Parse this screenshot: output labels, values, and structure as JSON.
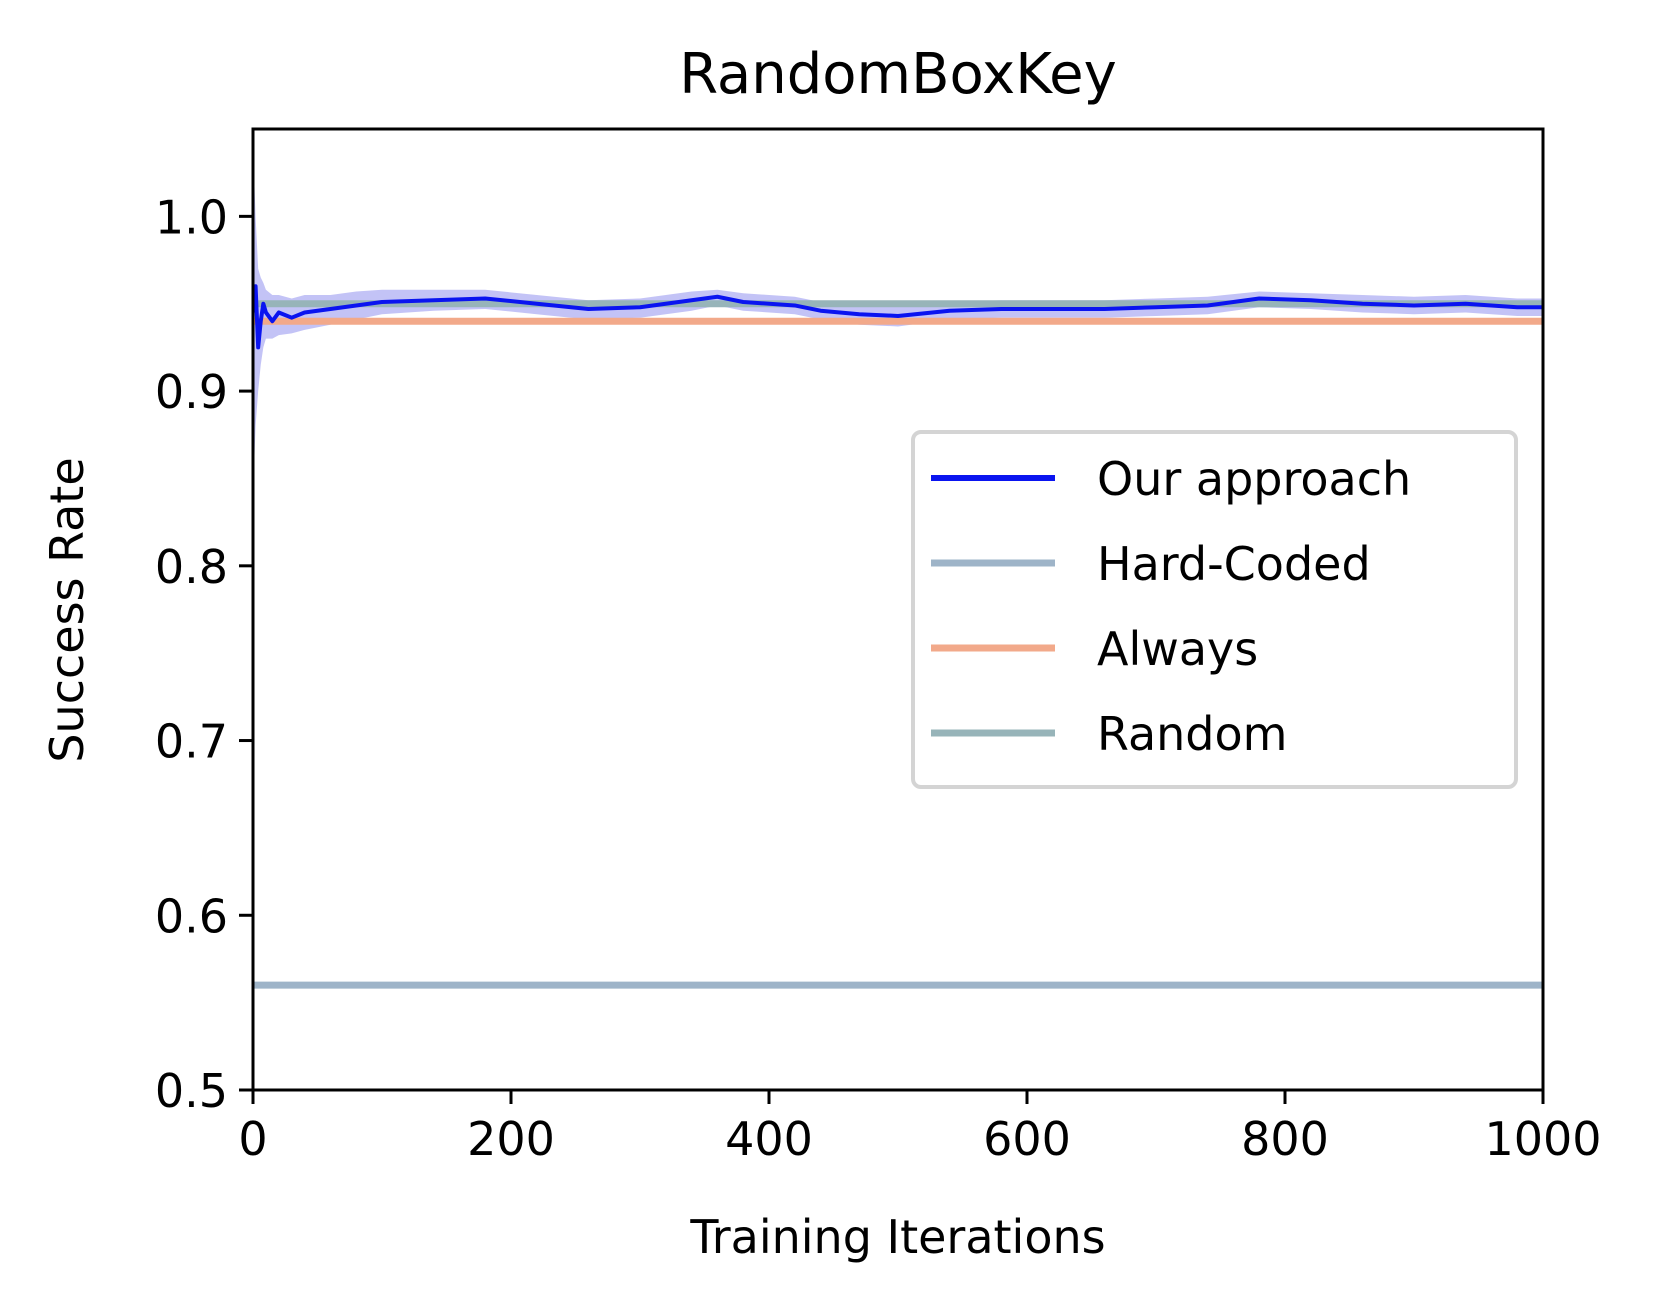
{
  "chart_data": {
    "type": "line",
    "title": "RandomBoxKey",
    "xlabel": "Training Iterations",
    "ylabel": "Success Rate",
    "xlim": [
      0,
      1000
    ],
    "ylim": [
      0.5,
      1.05
    ],
    "xticks": [
      0,
      200,
      400,
      600,
      800,
      1000
    ],
    "xtick_labels": [
      "0",
      "200",
      "400",
      "600",
      "800",
      "1000"
    ],
    "yticks": [
      0.5,
      0.6,
      0.7,
      0.8,
      0.9,
      1.0
    ],
    "ytick_labels": [
      "0.5",
      "0.6",
      "0.7",
      "0.8",
      "0.9",
      "1.0"
    ],
    "grid": false,
    "legend_position": "center-right",
    "series": [
      {
        "name": "Our approach",
        "color": "#0a14f0",
        "band_color": "#b9b9f5",
        "x": [
          0,
          2,
          4,
          6,
          8,
          10,
          15,
          20,
          30,
          40,
          60,
          80,
          100,
          140,
          180,
          220,
          260,
          300,
          340,
          360,
          380,
          420,
          440,
          470,
          500,
          540,
          580,
          620,
          660,
          700,
          740,
          780,
          820,
          860,
          900,
          940,
          980,
          1000
        ],
        "y": [
          0.945,
          0.96,
          0.925,
          0.94,
          0.95,
          0.945,
          0.94,
          0.945,
          0.942,
          0.945,
          0.947,
          0.949,
          0.951,
          0.952,
          0.953,
          0.95,
          0.947,
          0.948,
          0.952,
          0.954,
          0.951,
          0.949,
          0.946,
          0.944,
          0.943,
          0.946,
          0.947,
          0.947,
          0.947,
          0.948,
          0.949,
          0.953,
          0.952,
          0.95,
          0.949,
          0.95,
          0.948,
          0.948
        ],
        "band_upper": [
          1.04,
          1.0,
          0.97,
          0.965,
          0.962,
          0.958,
          0.955,
          0.955,
          0.953,
          0.955,
          0.955,
          0.957,
          0.958,
          0.958,
          0.958,
          0.955,
          0.952,
          0.953,
          0.957,
          0.958,
          0.956,
          0.954,
          0.951,
          0.95,
          0.949,
          0.951,
          0.952,
          0.952,
          0.952,
          0.953,
          0.954,
          0.957,
          0.956,
          0.955,
          0.954,
          0.955,
          0.953,
          0.953
        ],
        "band_lower": [
          0.84,
          0.88,
          0.9,
          0.915,
          0.925,
          0.93,
          0.93,
          0.932,
          0.933,
          0.935,
          0.938,
          0.941,
          0.944,
          0.946,
          0.947,
          0.944,
          0.941,
          0.942,
          0.946,
          0.949,
          0.946,
          0.944,
          0.941,
          0.938,
          0.937,
          0.941,
          0.942,
          0.942,
          0.942,
          0.943,
          0.944,
          0.948,
          0.947,
          0.945,
          0.944,
          0.945,
          0.943,
          0.943
        ]
      },
      {
        "name": "Hard-Coded",
        "color": "#9eb4c8",
        "x": [
          0,
          1000
        ],
        "y": [
          0.56,
          0.56
        ]
      },
      {
        "name": "Always",
        "color": "#f2a98a",
        "x": [
          0,
          1000
        ],
        "y": [
          0.94,
          0.94
        ]
      },
      {
        "name": "Random",
        "color": "#97b4b9",
        "x": [
          0,
          1000
        ],
        "y": [
          0.95,
          0.95
        ]
      }
    ]
  }
}
